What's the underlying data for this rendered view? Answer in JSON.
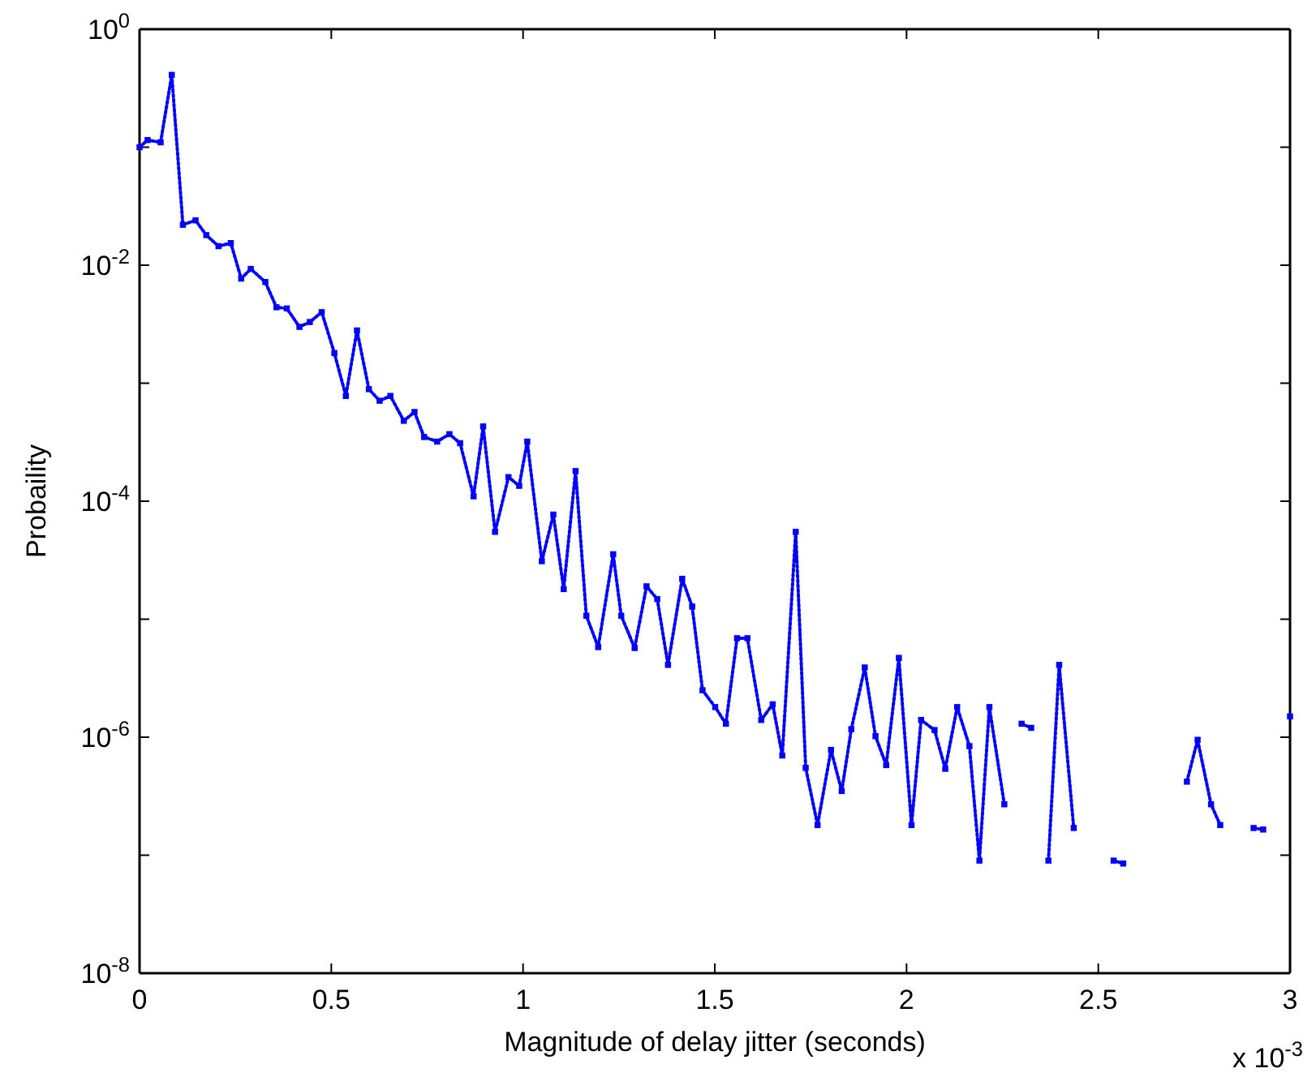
{
  "chart_data": {
    "type": "line",
    "xlabel": "Magnitude of delay jitter (seconds)",
    "ylabel": "Probaility",
    "annotations": [
      "x 10$^{-3}$"
    ],
    "log": "y",
    "grid": false,
    "marker": "square",
    "line_style": "dotted",
    "xlim": [
      0,
      3
    ],
    "xticks": [
      0,
      0.5,
      1,
      1.5,
      2,
      2.5,
      3
    ],
    "ylim": [
      1e-08,
      1
    ],
    "yticks": [
      {
        "value": 1e-08,
        "label": "10$^{-8}$"
      },
      {
        "value": 1e-07,
        "label": null
      },
      {
        "value": 1e-06,
        "label": "10$^{-6}$"
      },
      {
        "value": 1e-05,
        "label": null
      },
      {
        "value": 0.0001,
        "label": "10$^{-4}$"
      },
      {
        "value": 0.001,
        "label": null
      },
      {
        "value": 0.01,
        "label": "10$^{-2}$"
      },
      {
        "value": 0.1,
        "label": null
      },
      {
        "value": 1,
        "label": "10$^{0}$"
      }
    ],
    "series": [
      {
        "color": "#0000ff",
        "x": [
          0,
          0.021,
          0.055,
          0.084,
          0.113,
          0.146,
          0.174,
          0.206,
          0.238,
          0.265,
          0.29,
          0.328,
          0.357,
          0.384,
          0.417,
          0.444,
          0.475,
          0.508,
          0.538,
          0.567,
          0.598,
          0.626,
          0.654,
          0.689,
          0.717,
          0.742,
          0.776,
          0.808,
          0.836,
          0.871,
          0.896,
          0.927,
          0.962,
          0.99,
          1.011,
          1.049,
          1.079,
          1.106,
          1.137,
          1.165,
          1.196,
          1.235,
          1.256,
          1.291,
          1.322,
          1.35,
          1.378,
          1.415,
          1.441,
          1.468,
          1.501,
          1.529,
          1.558,
          1.585,
          1.621,
          1.651,
          1.676,
          1.711,
          1.737,
          1.768,
          1.803,
          1.831,
          1.856,
          1.891,
          1.919,
          1.947,
          1.98,
          2.013,
          2.038,
          2.073,
          2.101,
          2.132,
          2.164,
          2.19,
          2.216,
          2.255,
          2.28,
          2.3,
          2.325,
          2.34,
          2.37,
          2.398,
          2.436,
          2.49,
          2.54,
          2.565,
          2.65,
          2.731,
          2.759,
          2.794,
          2.818,
          2.87,
          2.905,
          2.93,
          2.96,
          3.0
        ],
        "values": [
          0.1,
          0.115,
          0.11,
          0.41,
          0.022,
          0.024,
          0.018,
          0.0145,
          0.0154,
          0.0077,
          0.0093,
          0.0072,
          0.0044,
          0.0043,
          0.003,
          0.0033,
          0.004,
          0.0018,
          0.00078,
          0.0028,
          0.00089,
          0.00071,
          0.00078,
          0.00048,
          0.00057,
          0.00035,
          0.00032,
          0.00037,
          0.00031,
          0.00011,
          0.00043,
          5.5e-05,
          0.00016,
          0.000135,
          0.00032,
          3.1e-05,
          7.7e-05,
          1.8e-05,
          0.00018,
          1.07e-05,
          5.8e-06,
          3.55e-05,
          1.07e-05,
          5.7e-06,
          1.9e-05,
          1.48e-05,
          4.1e-06,
          2.2e-05,
          1.28e-05,
          2.5e-06,
          1.8e-06,
          1.3e-06,
          6.9e-06,
          6.9e-06,
          1.4e-06,
          1.9e-06,
          7e-07,
          5.5e-05,
          5.5e-07,
          1.8e-07,
          7.8e-07,
          3.5e-07,
          1.17e-06,
          3.9e-06,
          1.02e-06,
          5.8e-07,
          4.7e-06,
          1.8e-07,
          1.4e-06,
          1.15e-06,
          5.4e-07,
          1.8e-06,
          8.4e-07,
          9e-08,
          1.8e-06,
          2.7e-07,
          null,
          1.3e-06,
          1.2e-06,
          null,
          9e-08,
          4.1e-06,
          1.7e-07,
          null,
          9e-08,
          8.5e-08,
          null,
          4.2e-07,
          9.5e-07,
          2.7e-07,
          1.8e-07,
          null,
          1.7e-07,
          1.65e-07,
          null,
          1.5e-06
        ]
      }
    ]
  }
}
